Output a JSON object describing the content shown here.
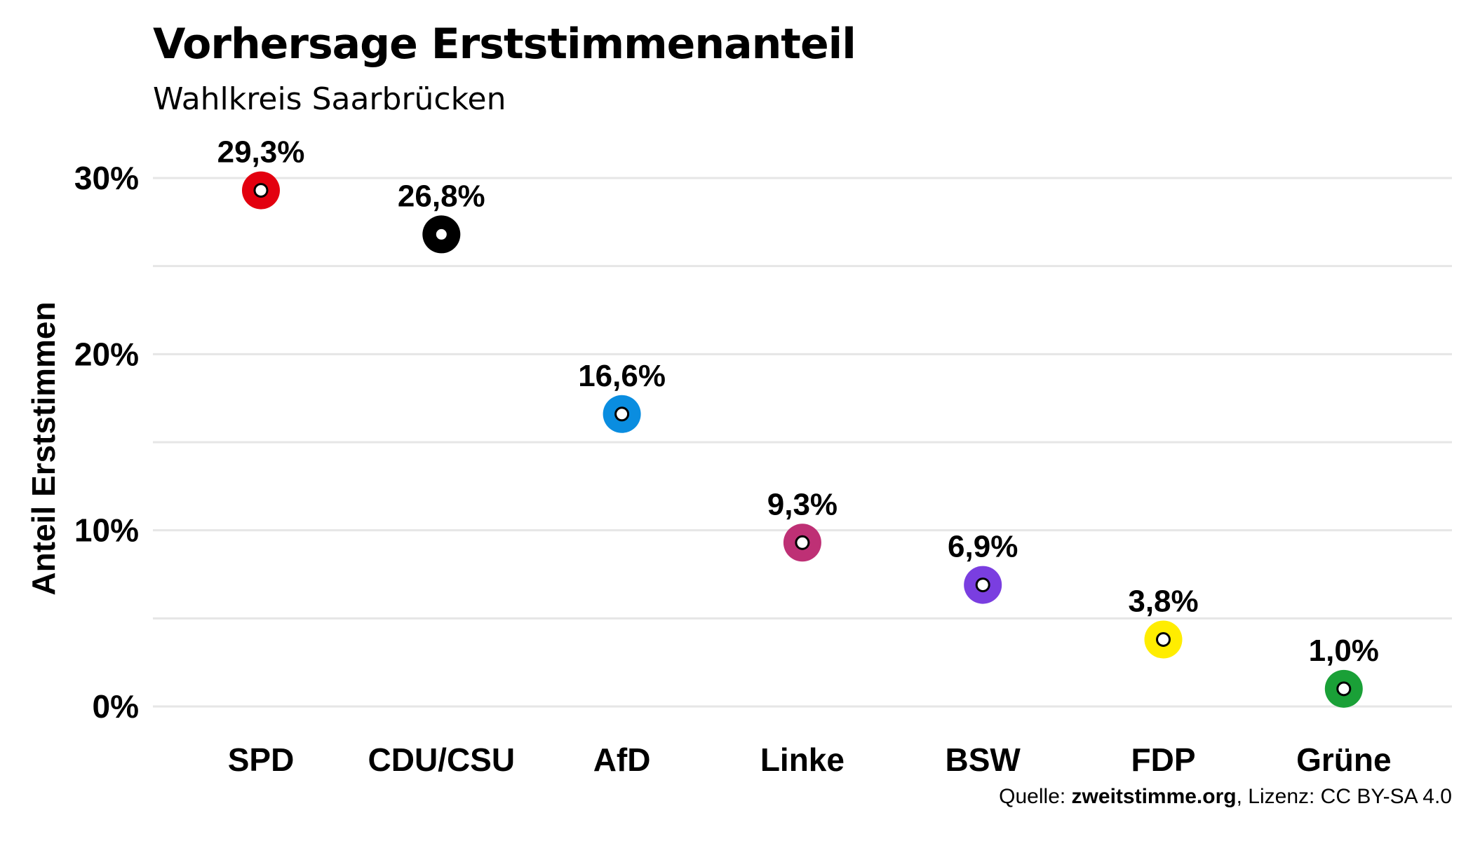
{
  "chart_data": {
    "type": "scatter",
    "title": "Vorhersage Erststimmenanteil",
    "subtitle": "Wahlkreis Saarbrücken",
    "ylabel": "Anteil Erststimmen",
    "xlabel": "",
    "ylim": [
      0,
      30
    ],
    "grid": true,
    "yticks": [
      {
        "value": 0,
        "label": "0%"
      },
      {
        "value": 10,
        "label": "10%"
      },
      {
        "value": 20,
        "label": "20%"
      },
      {
        "value": 30,
        "label": "30%"
      }
    ],
    "categories": [
      "SPD",
      "CDU/CSU",
      "AfD",
      "Linke",
      "BSW",
      "FDP",
      "Grüne"
    ],
    "values": [
      29.3,
      26.8,
      16.6,
      9.3,
      6.9,
      3.8,
      1.0
    ],
    "data_labels": [
      "29,3%",
      "26,8%",
      "16,6%",
      "9,3%",
      "6,9%",
      "3,8%",
      "1,0%"
    ],
    "colors": [
      "#e3000f",
      "#000000",
      "#0a8de0",
      "#be3075",
      "#7a3ee0",
      "#ffed00",
      "#1aa037"
    ]
  },
  "caption": {
    "prefix": "Quelle: ",
    "source": "zweitstimme.org",
    "suffix": ", Lizenz: CC BY-SA 4.0"
  }
}
